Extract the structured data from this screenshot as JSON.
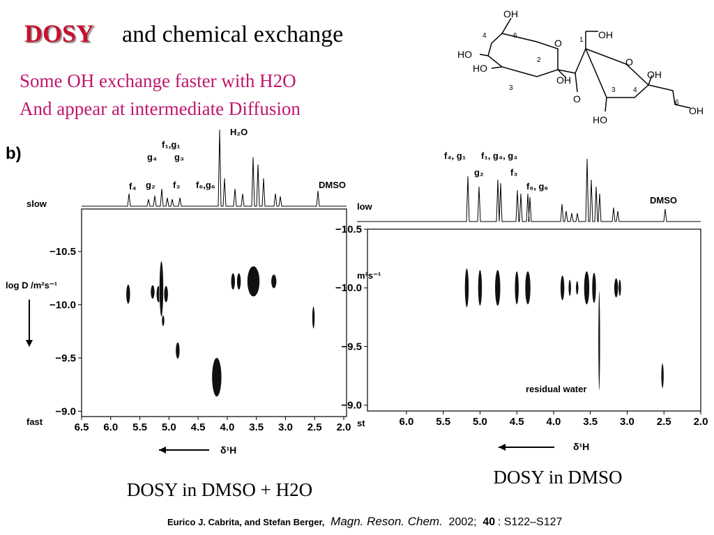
{
  "title": {
    "highlight": "DOSY",
    "rest": "and chemical exchange"
  },
  "subtitle": [
    "Some OH exchange faster with H2O",
    "And appear at intermediate Diffusion"
  ],
  "structure": {
    "labels": [
      "OH",
      "6",
      "4",
      "1",
      "OH",
      "HO",
      "O",
      "2",
      "HO",
      "O",
      "OH",
      "3",
      "OH",
      "O",
      "3",
      "4",
      "6",
      "HO",
      "OH"
    ]
  },
  "chart_data": [
    {
      "type": "scatter",
      "panel_label": "b)",
      "xlabel": "δ¹H",
      "ylabel": "log D /m²s⁻¹",
      "slow_label": "slow",
      "fast_label": "fast",
      "annotations": [
        "f₄",
        "g₂",
        "g₄",
        "f₁,g₁",
        "g₃",
        "f₃",
        "f₆,g₆",
        "H₂O",
        "DMSO"
      ],
      "xlim": [
        6.5,
        2.0
      ],
      "ylim": [
        -8.95,
        -10.9
      ],
      "xticks": [
        6.5,
        {
          "value": 6,
          "label": "6.0"
        },
        5.5,
        {
          "value": 5,
          "label": "5.0"
        },
        4.5,
        {
          "value": 4,
          "label": "4.0"
        },
        3.5,
        {
          "value": 3,
          "label": "3.0"
        },
        2.5,
        {
          "value": 2,
          "label": "2.0"
        }
      ],
      "yticks": [
        {
          "value": -10.5,
          "label": "−10.5"
        },
        {
          "value": -10,
          "label": "−10.0"
        },
        {
          "value": -9.5,
          "label": "−9.5"
        },
        {
          "value": -9,
          "label": "−9.0"
        }
      ],
      "color": "#111111",
      "x": [
        5.7,
        5.28,
        5.18,
        5.13,
        5.05,
        5.1,
        4.85,
        4.18,
        3.9,
        3.8,
        3.55,
        3.2,
        2.52
      ],
      "values": [
        -10.1,
        -10.12,
        -10.1,
        -10.15,
        -10.1,
        -9.85,
        -9.57,
        -9.32,
        -10.22,
        -10.22,
        -10.22,
        -10.22,
        -9.88
      ]
    },
    {
      "type": "scatter",
      "ylabel": "m²s⁻¹",
      "slow_label": "low",
      "fast_label": "st",
      "xlabel": "δ¹H",
      "annotations": [
        "f₄, g₁",
        "g₂",
        "f₁, g₄, g₃",
        "f₃",
        "f₆, g₆",
        "DMSO",
        "residual water"
      ],
      "xlim": [
        6.53,
        2.0
      ],
      "ylim": [
        -8.95,
        -10.5
      ],
      "xticks": [
        {
          "value": 6,
          "label": "6.0"
        },
        5.5,
        {
          "value": 5,
          "label": "5.0"
        },
        4.5,
        {
          "value": 4,
          "label": "4.0"
        },
        3.5,
        {
          "value": 3,
          "label": "3.0"
        },
        2.5,
        {
          "value": 2,
          "label": "2.0"
        }
      ],
      "yticks": [
        {
          "value": -10.5,
          "label": "−10.5"
        },
        {
          "value": -10,
          "label": "−10.0"
        },
        {
          "value": -9.5,
          "label": "−9.5"
        },
        {
          "value": -9,
          "label": "−9.0"
        }
      ],
      "color": "#111111",
      "x": [
        5.18,
        5.0,
        4.76,
        4.5,
        4.35,
        3.88,
        3.78,
        3.68,
        3.55,
        3.45,
        3.15,
        3.1,
        2.52,
        3.38
      ],
      "values": [
        -10.0,
        -10.0,
        -10.0,
        -10.0,
        -10.0,
        -10.0,
        -10.0,
        -10.0,
        -10.0,
        -10.0,
        -10.0,
        -10.0,
        -9.25,
        -9.55
      ]
    }
  ],
  "captions": [
    "DOSY in DMSO + H2O",
    "DOSY in DMSO"
  ],
  "citation": {
    "authors": "Eurico J. Cabrita, and Stefan Berger,",
    "journal": "Magn. Reson. Chem.",
    "year": "2002;",
    "volume": "40",
    "pages": ": S122–S127"
  }
}
